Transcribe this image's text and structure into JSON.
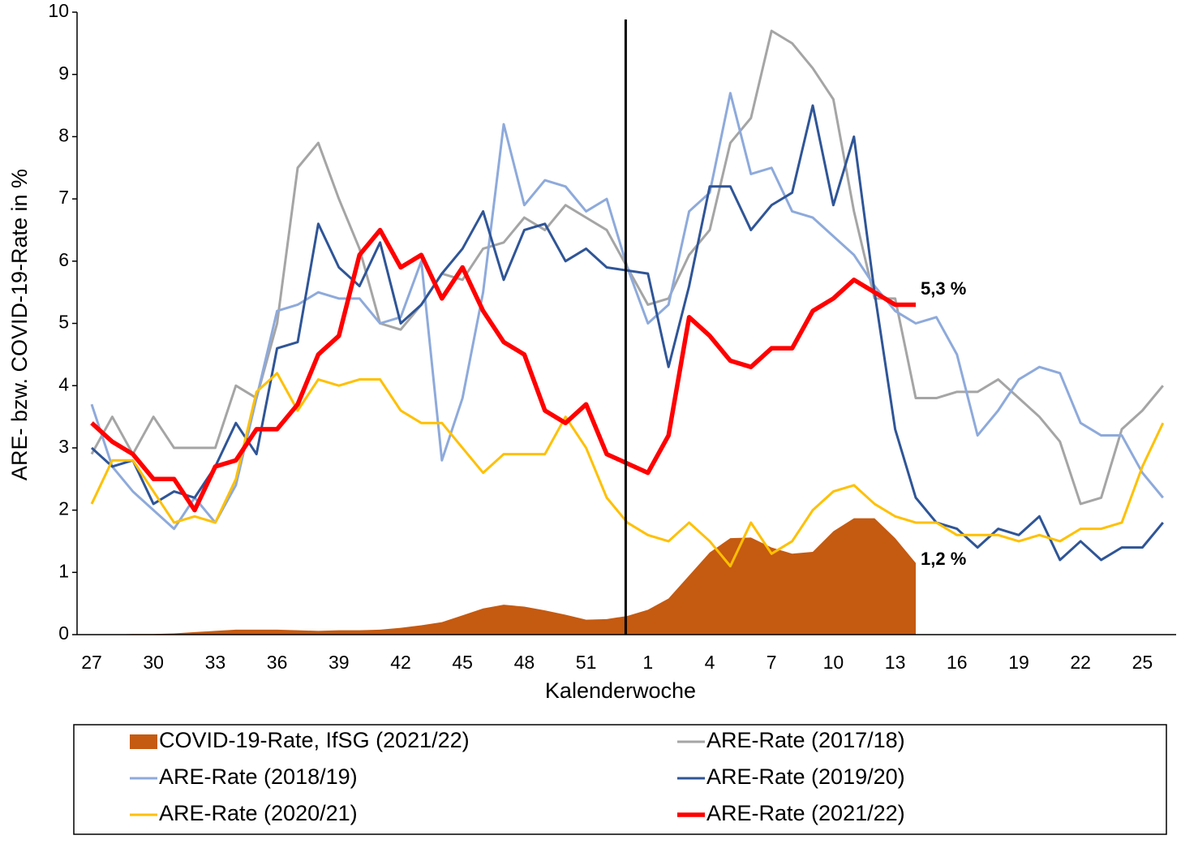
{
  "chart_data": {
    "type": "line",
    "x_label": "Kalenderwoche",
    "y_label": "ARE- bzw. COVID-19-Rate in %",
    "categories": [
      "27",
      null,
      null,
      "30",
      null,
      null,
      "33",
      null,
      null,
      "36",
      null,
      null,
      "39",
      null,
      null,
      "42",
      null,
      null,
      "45",
      null,
      null,
      "48",
      null,
      null,
      "51",
      null,
      null,
      "1",
      null,
      null,
      "4",
      null,
      null,
      "7",
      null,
      null,
      "10",
      null,
      null,
      "13",
      null,
      null,
      "16",
      null,
      null,
      "19",
      null,
      null,
      "22",
      null,
      null,
      "25",
      null
    ],
    "ylim": [
      0,
      10
    ],
    "yticks": [
      0,
      1,
      2,
      3,
      4,
      5,
      6,
      7,
      8,
      9,
      10
    ],
    "grid": false,
    "series": [
      {
        "name": "COVID-19-Rate, IfSG (2021/22)",
        "type": "area",
        "color": "#c55a11",
        "values": [
          0,
          0,
          0.01,
          0.01,
          0.02,
          0.04,
          0.06,
          0.08,
          0.08,
          0.08,
          0.07,
          0.06,
          0.07,
          0.07,
          0.08,
          0.11,
          0.15,
          0.2,
          0.31,
          0.42,
          0.48,
          0.45,
          0.39,
          0.32,
          0.24,
          0.25,
          0.3,
          0.4,
          0.58,
          0.95,
          1.32,
          1.55,
          1.56,
          1.4,
          1.3,
          1.33,
          1.66,
          1.87,
          1.87,
          1.55,
          1.15,
          null,
          null,
          null,
          null,
          null,
          null,
          null,
          null,
          null,
          null,
          null,
          null
        ]
      },
      {
        "name": "ARE-Rate (2017/18)",
        "type": "line",
        "color": "#a5a5a5",
        "width": 3,
        "values": [
          2.9,
          3.5,
          2.9,
          3.5,
          3.0,
          3.0,
          3.0,
          4.0,
          3.8,
          5.0,
          7.5,
          7.9,
          7.0,
          6.2,
          5.0,
          4.9,
          5.3,
          5.8,
          5.7,
          6.2,
          6.3,
          6.7,
          6.5,
          6.9,
          6.7,
          6.5,
          5.9,
          5.3,
          5.4,
          6.1,
          6.5,
          7.9,
          8.3,
          9.7,
          9.5,
          9.1,
          8.6,
          6.8,
          5.4,
          5.4,
          3.8,
          3.8,
          3.9,
          3.9,
          4.1,
          3.8,
          3.5,
          3.1,
          2.1,
          2.2,
          3.3,
          3.6,
          4.0
        ]
      },
      {
        "name": "ARE-Rate (2018/19)",
        "type": "line",
        "color": "#8eaadb",
        "width": 3,
        "values": [
          3.7,
          2.7,
          2.3,
          2.0,
          1.7,
          2.2,
          1.8,
          2.4,
          3.8,
          5.2,
          5.3,
          5.5,
          5.4,
          5.4,
          5.0,
          5.1,
          6.0,
          2.8,
          3.8,
          5.5,
          8.2,
          6.9,
          7.3,
          7.2,
          6.8,
          7.0,
          5.9,
          5.0,
          5.3,
          6.8,
          7.1,
          8.7,
          7.4,
          7.5,
          6.8,
          6.7,
          6.4,
          6.1,
          5.6,
          5.2,
          5.0,
          5.1,
          4.5,
          3.2,
          3.6,
          4.1,
          4.3,
          4.2,
          3.4,
          3.2,
          3.2,
          2.6,
          2.2
        ]
      },
      {
        "name": "ARE-Rate (2019/20)",
        "type": "line",
        "color": "#2f5597",
        "width": 3,
        "values": [
          3.0,
          2.7,
          2.8,
          2.1,
          2.3,
          2.2,
          2.7,
          3.4,
          2.9,
          4.6,
          4.7,
          6.6,
          5.9,
          5.6,
          6.3,
          5.0,
          5.3,
          5.8,
          6.2,
          6.8,
          5.7,
          6.5,
          6.6,
          6.0,
          6.2,
          5.9,
          5.85,
          5.8,
          4.3,
          5.6,
          7.2,
          7.2,
          6.5,
          6.9,
          7.1,
          8.5,
          6.9,
          8.0,
          5.5,
          3.3,
          2.2,
          1.8,
          1.7,
          1.4,
          1.7,
          1.6,
          1.9,
          1.2,
          1.5,
          1.2,
          1.4,
          1.4,
          1.8
        ]
      },
      {
        "name": "ARE-Rate (2020/21)",
        "type": "line",
        "color": "#ffc000",
        "width": 3,
        "values": [
          2.1,
          2.8,
          2.8,
          2.3,
          1.8,
          1.9,
          1.8,
          2.5,
          3.9,
          4.2,
          3.6,
          4.1,
          4.0,
          4.1,
          4.1,
          3.6,
          3.4,
          3.4,
          3.0,
          2.6,
          2.9,
          2.9,
          2.9,
          3.5,
          3.0,
          2.2,
          1.8,
          1.6,
          1.5,
          1.8,
          1.5,
          1.1,
          1.8,
          1.3,
          1.5,
          2.0,
          2.3,
          2.4,
          2.1,
          1.9,
          1.8,
          1.8,
          1.6,
          1.6,
          1.6,
          1.5,
          1.6,
          1.5,
          1.7,
          1.7,
          1.8,
          2.7,
          3.4
        ]
      },
      {
        "name": "ARE-Rate (2021/22)",
        "type": "line",
        "color": "#ff0000",
        "width": 5.5,
        "values": [
          3.4,
          3.1,
          2.9,
          2.5,
          2.5,
          2.0,
          2.7,
          2.8,
          3.3,
          3.3,
          3.7,
          4.5,
          4.8,
          6.1,
          6.5,
          5.9,
          6.1,
          5.4,
          5.9,
          5.2,
          4.7,
          4.5,
          3.6,
          3.4,
          3.7,
          2.9,
          2.75,
          2.6,
          3.2,
          5.1,
          4.8,
          4.4,
          4.3,
          4.6,
          4.6,
          5.2,
          5.4,
          5.7,
          5.5,
          5.3,
          5.3,
          null,
          null,
          null,
          null,
          null,
          null,
          null,
          null,
          null,
          null,
          null,
          null
        ]
      }
    ],
    "annotations": [
      "5,3 %",
      "1,2 %"
    ]
  }
}
